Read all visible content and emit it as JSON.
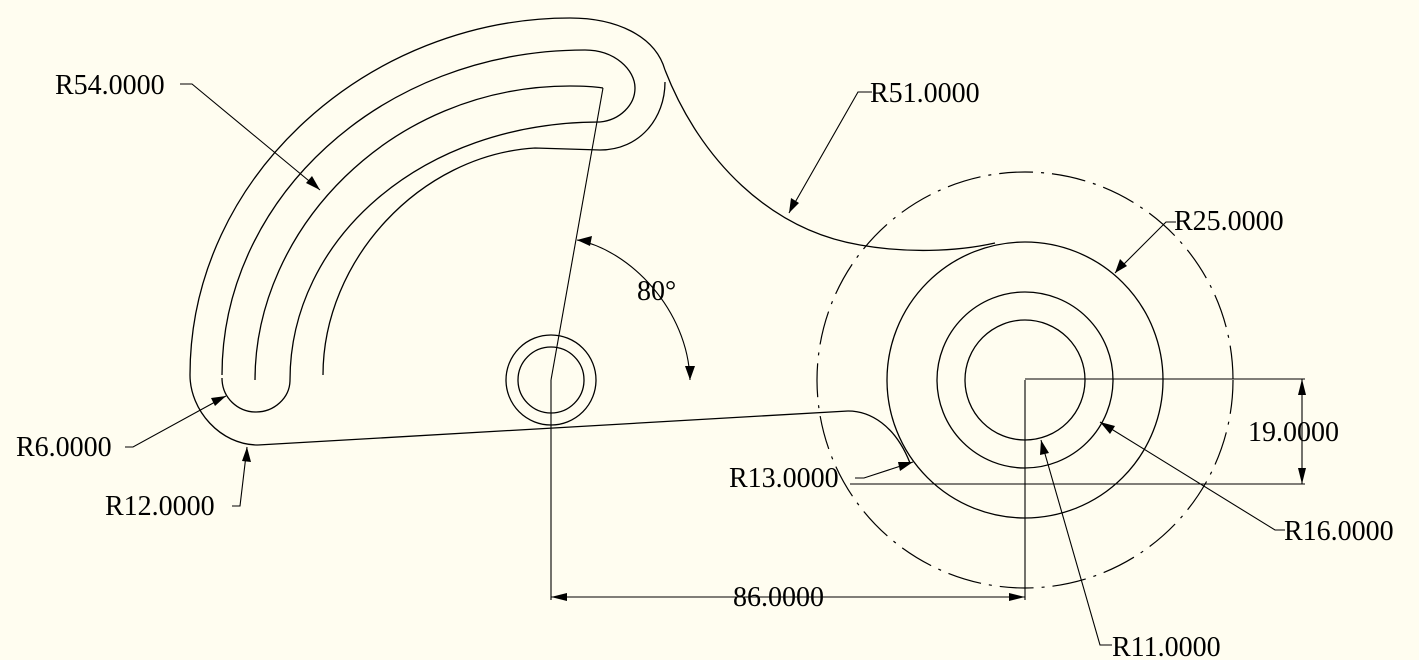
{
  "drawing": {
    "dimensions": {
      "r54": "R54.0000",
      "r51": "R51.0000",
      "r25": "R25.0000",
      "r6": "R6.0000",
      "r12": "R12.0000",
      "r13": "R13.0000",
      "r16": "R16.0000",
      "r11": "R11.0000",
      "d19": "19.0000",
      "d86": "86.0000",
      "angle80": "80°"
    },
    "line_color": "#000000",
    "background": "#fffdf0"
  }
}
